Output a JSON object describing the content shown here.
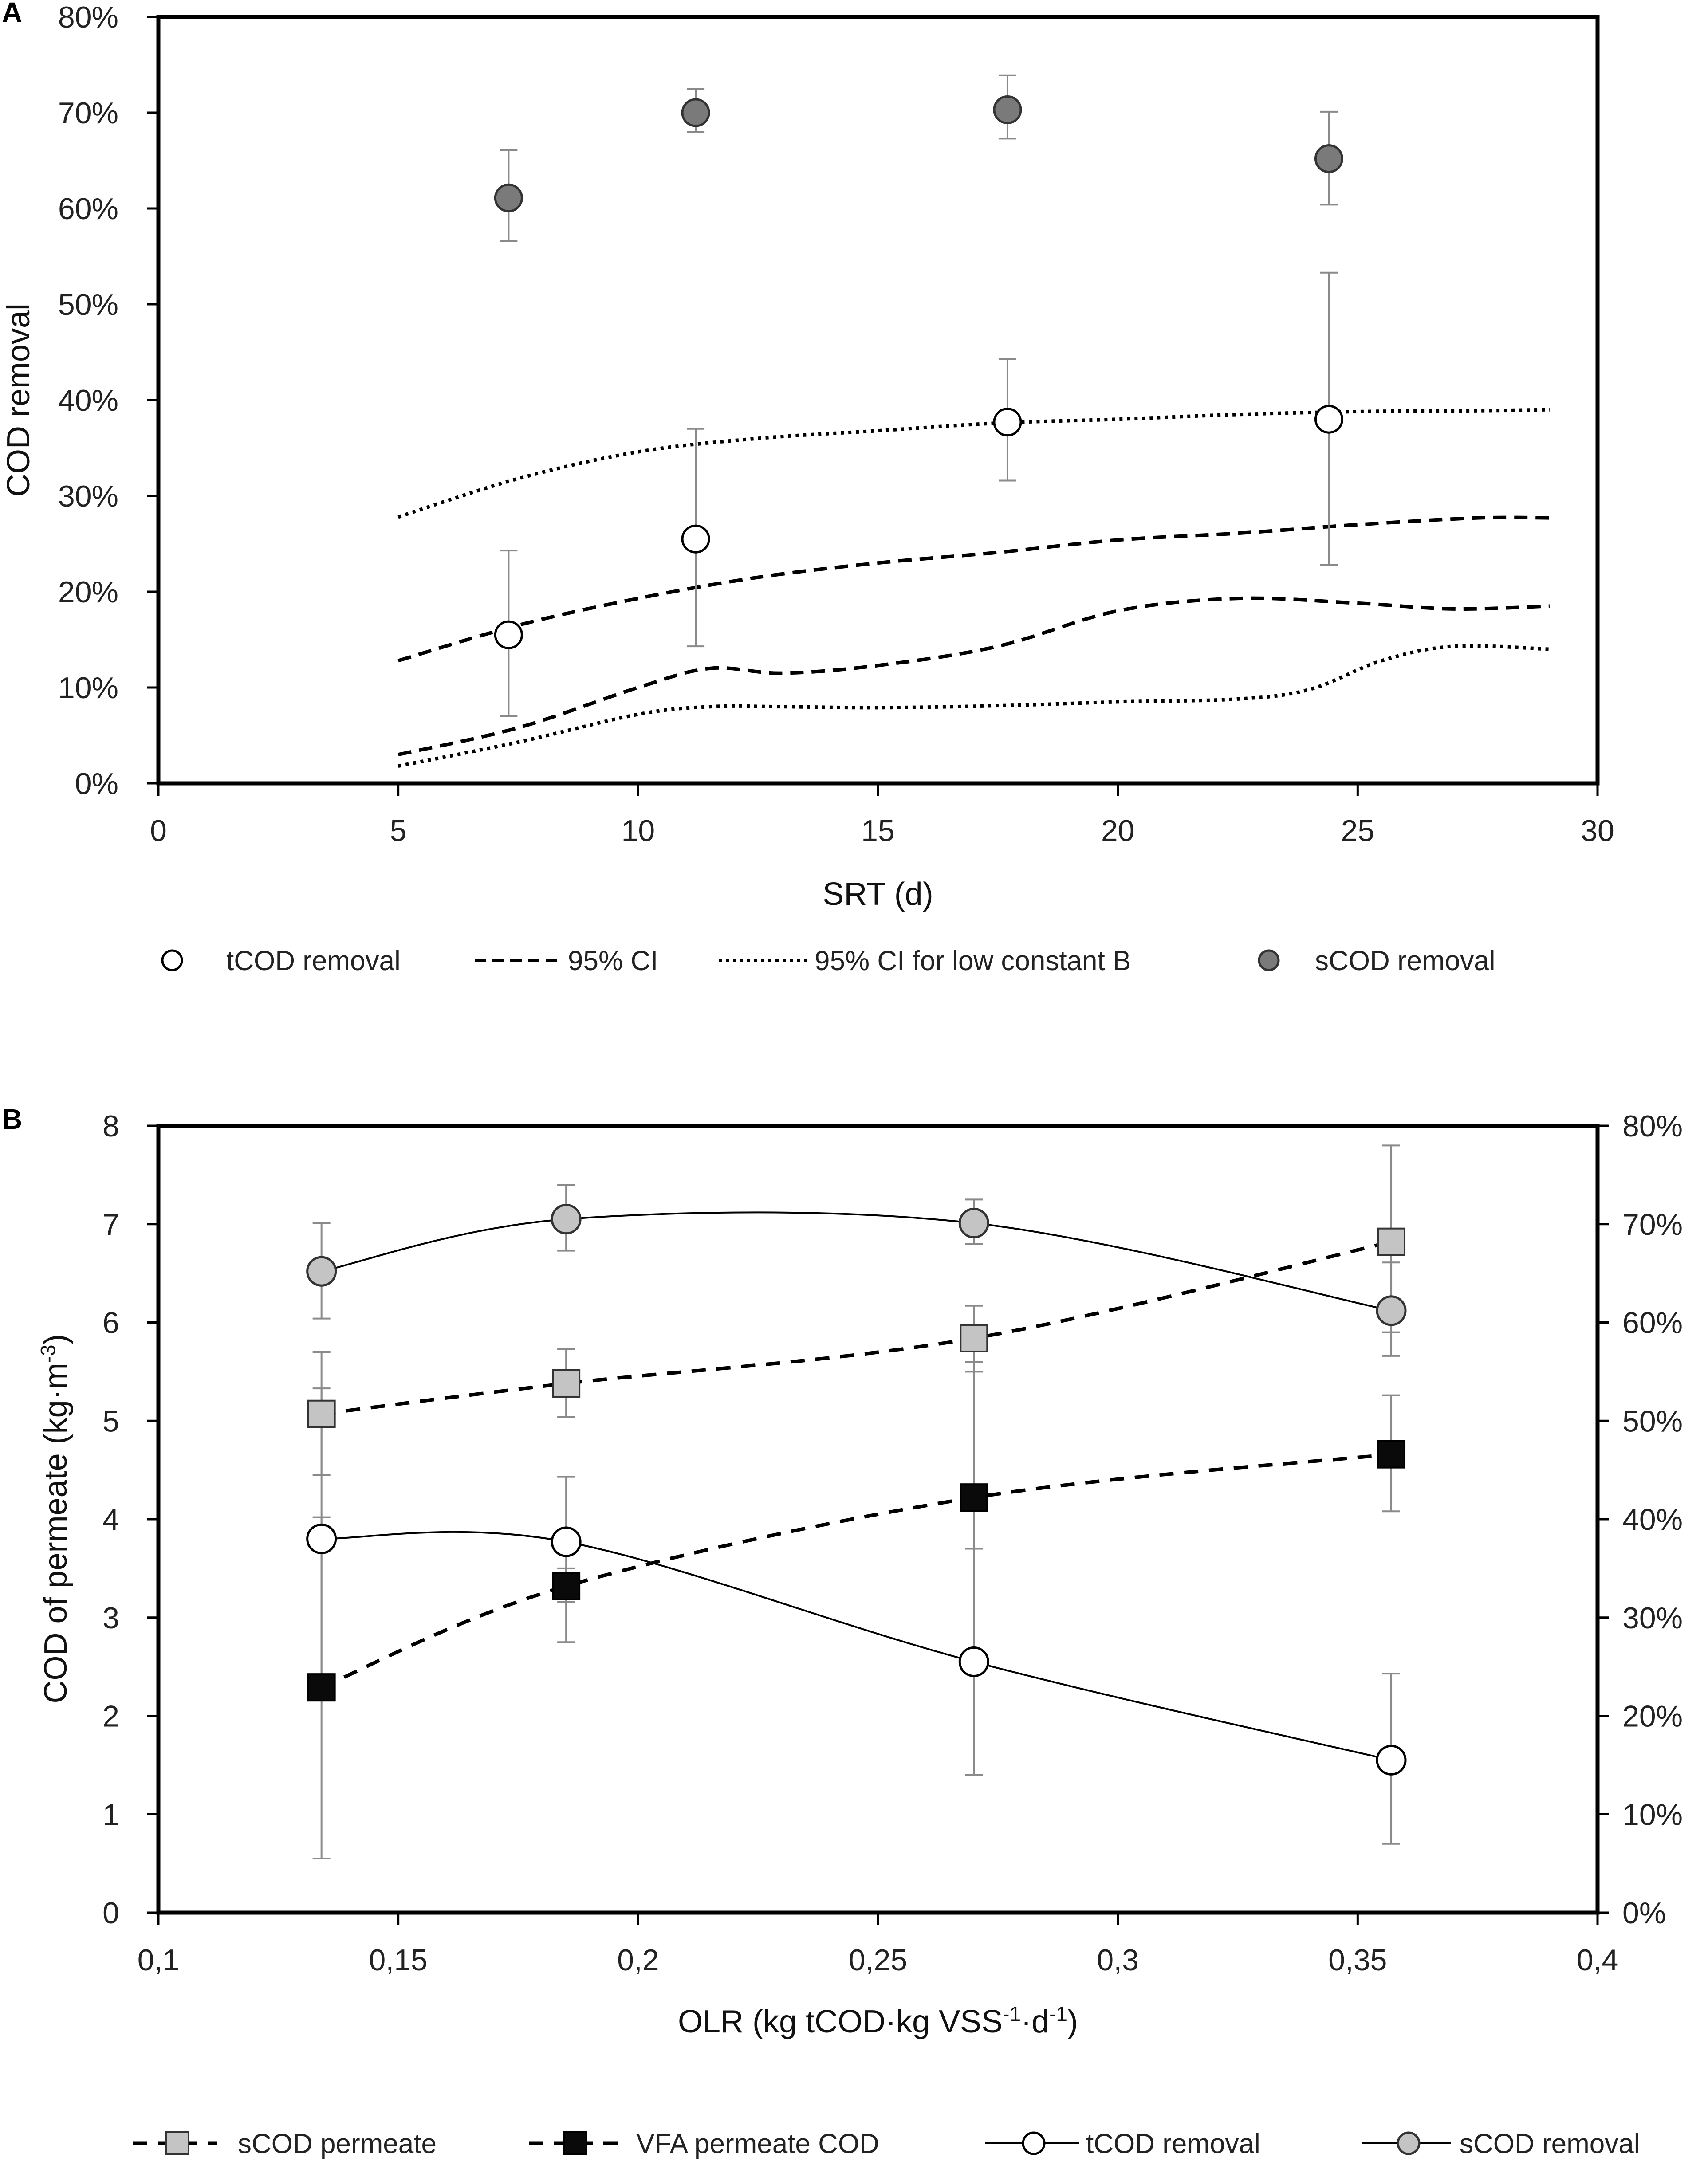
{
  "chart_data": [
    {
      "panel": "A",
      "type": "scatter",
      "xlabel": "SRT (d)",
      "ylabel": "COD removal",
      "xlim": [
        0,
        30
      ],
      "ylim": [
        0,
        0.8
      ],
      "x_ticks": [
        0,
        5,
        10,
        15,
        20,
        25,
        30
      ],
      "x_tick_labels": [
        "0",
        "5",
        "10",
        "15",
        "20",
        "25",
        "30"
      ],
      "y_ticks": [
        0,
        0.1,
        0.2,
        0.3,
        0.4,
        0.5,
        0.6,
        0.7,
        0.8
      ],
      "y_tick_labels": [
        "0%",
        "10%",
        "20%",
        "30%",
        "40%",
        "50%",
        "60%",
        "70%",
        "80%"
      ],
      "series": [
        {
          "name": "tCOD removal",
          "style": "open-circle",
          "x": [
            7.3,
            11.2,
            17.7,
            24.4
          ],
          "y": [
            0.155,
            0.255,
            0.377,
            0.38
          ],
          "err_low": [
            0.07,
            0.143,
            0.316,
            0.228
          ],
          "err_high": [
            0.243,
            0.37,
            0.443,
            0.533
          ]
        },
        {
          "name": "sCOD removal",
          "style": "dark-circle",
          "x": [
            7.3,
            11.2,
            17.7,
            24.4
          ],
          "y": [
            0.611,
            0.7,
            0.703,
            0.652
          ],
          "err_low": [
            0.566,
            0.68,
            0.673,
            0.604
          ],
          "err_high": [
            0.661,
            0.725,
            0.739,
            0.701
          ]
        },
        {
          "name": "95% CI",
          "style": "dashed",
          "lines": [
            {
              "x": [
                5,
                7.5,
                10,
                12.5,
                15,
                17.5,
                20,
                22.5,
                25,
                27.5,
                29
              ],
              "y": [
                0.128,
                0.165,
                0.193,
                0.215,
                0.23,
                0.241,
                0.254,
                0.261,
                0.27,
                0.277,
                0.277
              ]
            },
            {
              "x": [
                5,
                7.5,
                10,
                11.5,
                13,
                15,
                17.5,
                20,
                22.5,
                25,
                27,
                29
              ],
              "y": [
                0.03,
                0.058,
                0.1,
                0.12,
                0.115,
                0.123,
                0.143,
                0.18,
                0.193,
                0.188,
                0.182,
                0.185
              ]
            }
          ]
        },
        {
          "name": "95% CI for low constant B",
          "style": "dotted",
          "lines": [
            {
              "x": [
                5,
                7.5,
                10,
                12.5,
                15,
                17.5,
                20,
                22.5,
                25,
                27.5,
                29
              ],
              "y": [
                0.278,
                0.318,
                0.346,
                0.36,
                0.368,
                0.376,
                0.38,
                0.385,
                0.388,
                0.389,
                0.39
              ]
            },
            {
              "x": [
                5,
                7.5,
                10,
                11.5,
                13,
                15,
                17.5,
                20,
                22.5,
                24,
                25.5,
                27,
                29
              ],
              "y": [
                0.018,
                0.043,
                0.072,
                0.08,
                0.08,
                0.079,
                0.081,
                0.085,
                0.088,
                0.098,
                0.128,
                0.143,
                0.14
              ]
            }
          ]
        }
      ],
      "legend": [
        "tCOD removal",
        "95% CI",
        "95% CI for low constant B",
        "sCOD removal"
      ]
    },
    {
      "panel": "B",
      "type": "line",
      "xlabel": "OLR (kg tCOD·kg VSS",
      "xlabel_sup1": "-1",
      "xlabel_mid": "·d",
      "xlabel_sup2": "-1",
      "xlabel_end": ")",
      "ylabel": "COD of permeate  (kg·m",
      "ylabel_sup": "-3",
      "ylabel_end": ")",
      "xlim": [
        0.1,
        0.4
      ],
      "ylim_left": [
        0,
        8
      ],
      "ylim_right": [
        0,
        0.8
      ],
      "x_ticks": [
        0.1,
        0.15,
        0.2,
        0.25,
        0.3,
        0.35,
        0.4
      ],
      "x_tick_labels": [
        "0,1",
        "0,15",
        "0,2",
        "0,25",
        "0,3",
        "0,35",
        "0,4"
      ],
      "y_left_ticks": [
        0,
        1,
        2,
        3,
        4,
        5,
        6,
        7,
        8
      ],
      "y_left_tick_labels": [
        "0",
        "1",
        "2",
        "3",
        "4",
        "5",
        "6",
        "7",
        "8"
      ],
      "y_right_ticks": [
        0,
        0.1,
        0.2,
        0.3,
        0.4,
        0.5,
        0.6,
        0.7,
        0.8
      ],
      "y_right_tick_labels": [
        "0%",
        "10%",
        "20%",
        "30%",
        "40%",
        "50%",
        "60%",
        "70%",
        "80%"
      ],
      "series": [
        {
          "name": "sCOD permeate",
          "axis": "left",
          "style": "dashed-grey-square",
          "x": [
            0.134,
            0.185,
            0.27,
            0.357
          ],
          "y": [
            5.07,
            5.38,
            5.84,
            6.82
          ],
          "err_low": [
            4.45,
            5.04,
            5.5,
            5.9
          ],
          "err_high": [
            5.7,
            5.73,
            6.17,
            7.8
          ]
        },
        {
          "name": "VFA permeate COD",
          "axis": "left",
          "style": "dashed-black-square",
          "x": [
            0.134,
            0.185,
            0.27,
            0.357
          ],
          "y": [
            2.29,
            3.32,
            4.22,
            4.66
          ],
          "err_low": [
            0.55,
            2.75,
            3.7,
            4.08
          ],
          "err_high": [
            4.02,
            3.5,
            5.6,
            5.26
          ]
        },
        {
          "name": "tCOD removal",
          "axis": "right",
          "style": "solid-open-circle",
          "x": [
            0.134,
            0.185,
            0.27,
            0.357
          ],
          "y": [
            0.38,
            0.377,
            0.255,
            0.155
          ],
          "err_low": [
            0.228,
            0.316,
            0.14,
            0.07
          ],
          "err_high": [
            0.533,
            0.443,
            0.37,
            0.243
          ]
        },
        {
          "name": "sCOD removal",
          "axis": "right",
          "style": "solid-grey-circle",
          "x": [
            0.134,
            0.185,
            0.27,
            0.357
          ],
          "y": [
            0.652,
            0.705,
            0.701,
            0.612
          ],
          "err_low": [
            0.604,
            0.673,
            0.68,
            0.566
          ],
          "err_high": [
            0.701,
            0.74,
            0.725,
            0.661
          ]
        }
      ],
      "legend": [
        "sCOD permeate",
        "VFA permeate COD",
        "tCOD removal",
        "sCOD removal"
      ]
    }
  ]
}
